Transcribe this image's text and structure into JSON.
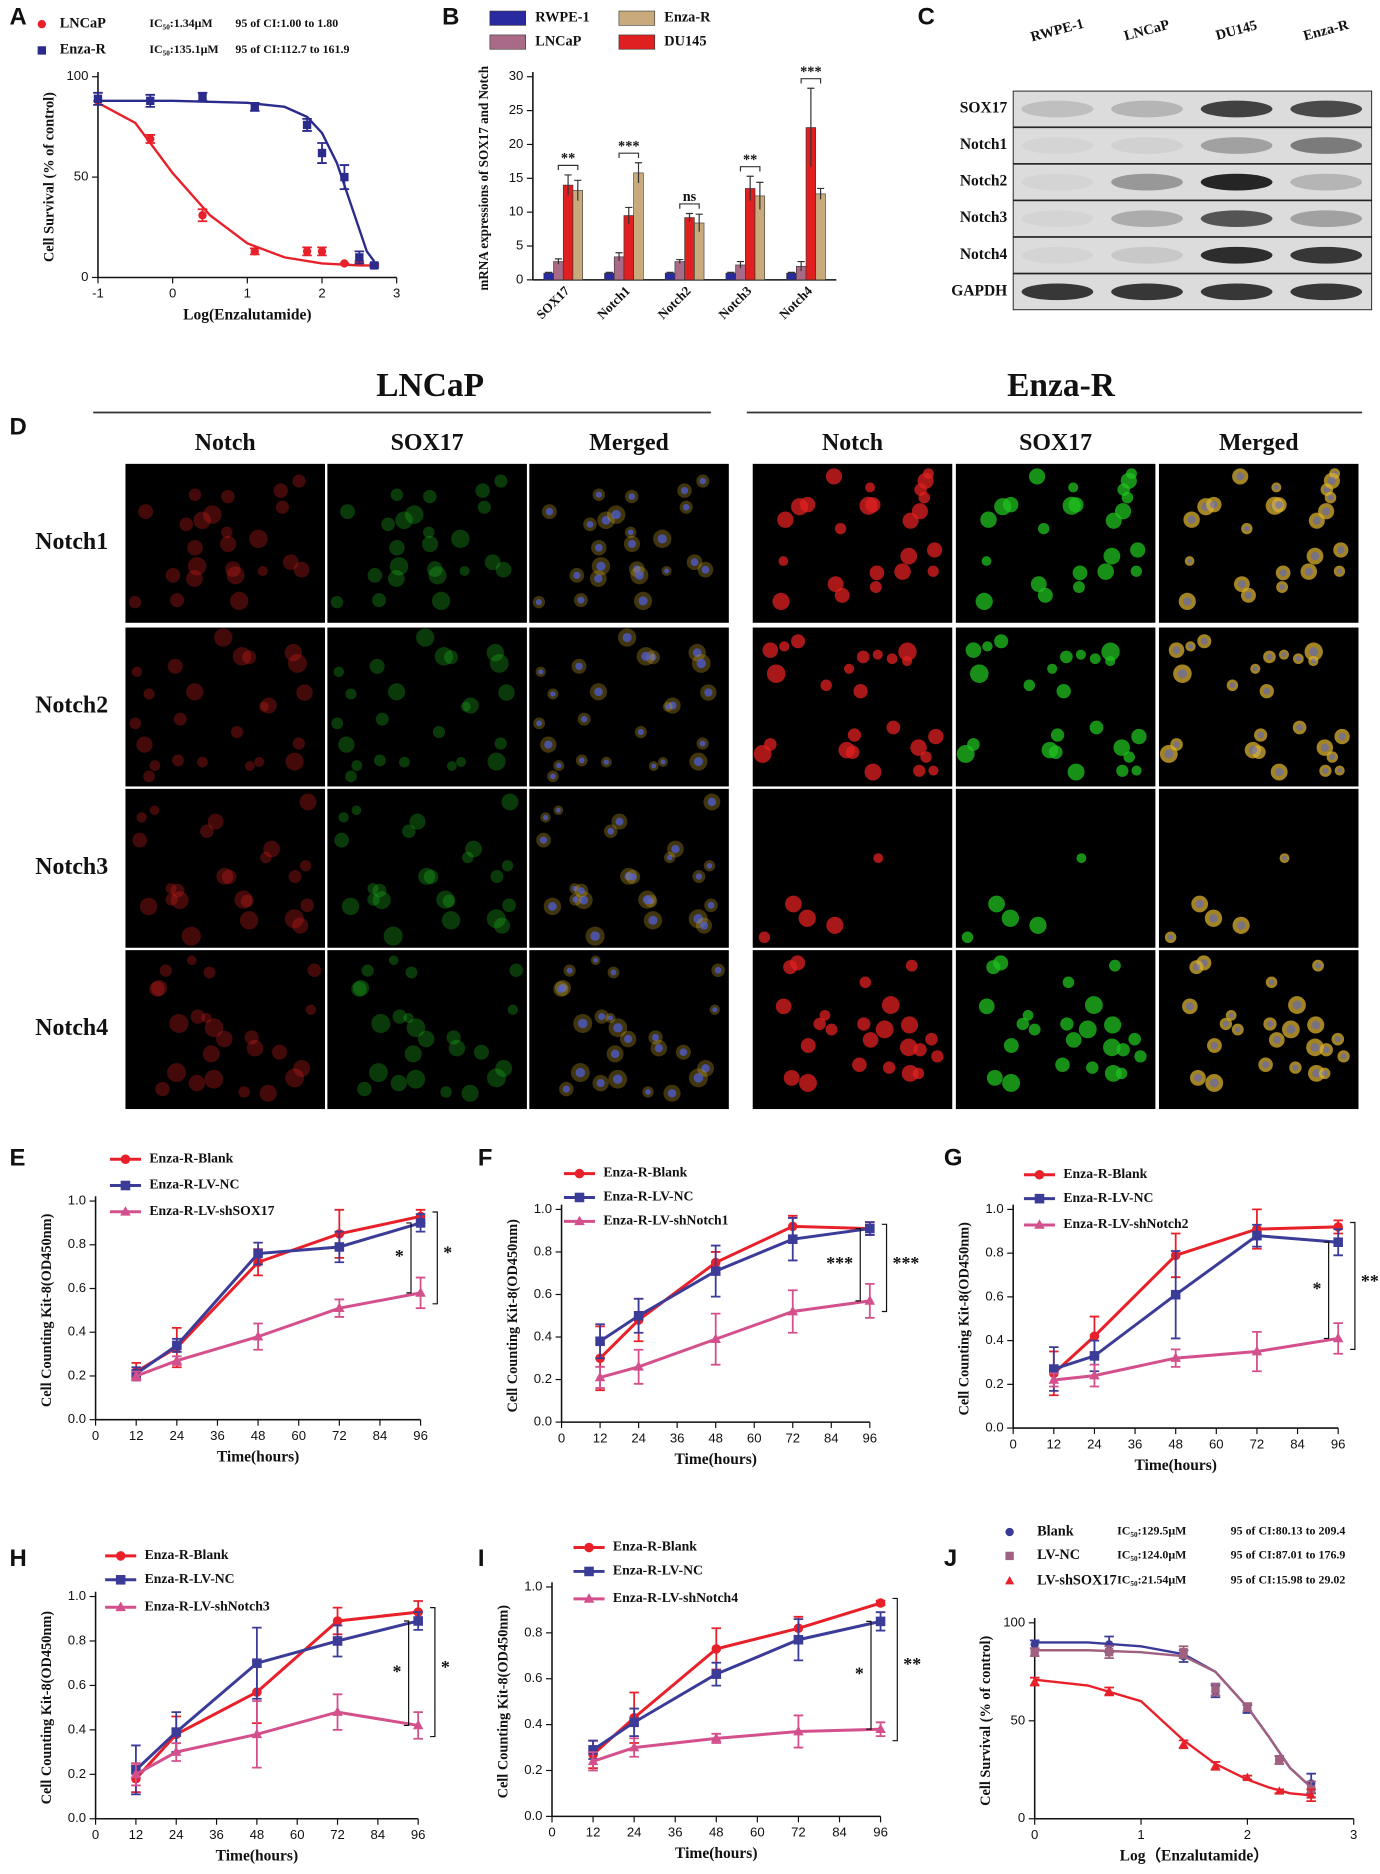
{
  "chart_data": [
    {
      "panel": "A",
      "type": "scatter",
      "x": [
        -1,
        -0.3,
        0.4,
        1.1,
        1.8,
        2,
        2.3,
        2.5,
        2.7
      ],
      "xlim": [
        -1,
        3
      ],
      "xticks": [
        -1,
        0,
        1,
        2,
        3
      ],
      "ylim": [
        0,
        100
      ],
      "yticks": [
        0,
        50,
        100
      ],
      "xlabel": "Log(Enzalutamide)",
      "ylabel": "Cell Survival (% of control)",
      "series": [
        {
          "name": "LNCaP",
          "ic50": "IC₅₀:1.34μM",
          "ci": "95 of CI:1.00 to 1.80",
          "color": "#e8202a",
          "marker": "circle",
          "values": [
            88,
            69,
            31,
            13,
            13,
            13,
            7,
            8,
            6
          ],
          "errors": [
            0,
            2,
            3,
            1.5,
            2,
            2,
            0,
            0,
            0
          ],
          "fit": {
            "x": [
              -1,
              -0.5,
              0,
              0.5,
              1,
              1.5,
              2,
              2.5,
              2.7
            ],
            "y": [
              87,
              77,
              52,
              31,
              17,
              10,
              7,
              6,
              6
            ]
          }
        },
        {
          "name": "Enza-R",
          "ic50": "IC₅₀:135.1μM",
          "ci": "95 of CI:112.7 to 161.9",
          "color": "#2b2b8c",
          "marker": "square",
          "values": [
            89,
            88,
            90,
            85,
            76,
            62,
            50,
            10,
            6
          ],
          "errors": [
            3,
            3,
            2,
            2,
            3,
            5,
            6,
            3,
            1
          ],
          "fit": {
            "x": [
              -1,
              0,
              1,
              1.5,
              1.8,
              2,
              2.2,
              2.4,
              2.6,
              2.7
            ],
            "y": [
              88,
              88,
              87,
              85,
              80,
              72,
              57,
              35,
              13,
              8
            ]
          }
        }
      ]
    },
    {
      "panel": "B",
      "type": "bar",
      "categories": [
        "SOX17",
        "Notch1",
        "Notch2",
        "Notch3",
        "Notch4"
      ],
      "ylim": [
        0,
        30
      ],
      "yticks": [
        0,
        5,
        10,
        15,
        20,
        25,
        30
      ],
      "ylabel": "mRNA expressions of SOX17 and Notch",
      "series": [
        {
          "name": "RWPE-1",
          "color": "#2a2aa0",
          "values": [
            1,
            1,
            1,
            1,
            1
          ],
          "errors": [
            0.1,
            0.1,
            0.1,
            0.1,
            0.1
          ]
        },
        {
          "name": "LNCaP",
          "color": "#a86a86",
          "values": [
            2.7,
            3.4,
            2.7,
            2.2,
            2
          ],
          "errors": [
            0.4,
            0.6,
            0.3,
            0.5,
            0.7
          ]
        },
        {
          "name": "DU145",
          "color": "#e02020",
          "values": [
            14,
            9.5,
            9.2,
            13.5,
            22.5
          ],
          "errors": [
            1.5,
            1.2,
            0.6,
            1.8,
            5.8
          ]
        },
        {
          "name": "Enza-R",
          "color": "#c8aa7c",
          "values": [
            13.2,
            15.8,
            8.4,
            12.4,
            12.7
          ],
          "errors": [
            1.5,
            1.5,
            1.3,
            2,
            0.8
          ]
        }
      ],
      "significance": [
        "**",
        "***",
        "ns",
        "**",
        "***"
      ]
    },
    {
      "panel": "E",
      "type": "line",
      "x": [
        12,
        24,
        48,
        72,
        96
      ],
      "xlim": [
        0,
        96
      ],
      "xticks": [
        0,
        12,
        24,
        36,
        48,
        60,
        72,
        84,
        96
      ],
      "ylim": [
        0,
        1
      ],
      "yticks": [
        {
          "value": 0,
          "label": "0.0"
        },
        0.2,
        0.4,
        0.6,
        0.8,
        {
          "value": 1,
          "label": "1.0"
        }
      ],
      "xlabel": "Time(hours)",
      "ylabel": "Cell Counting Kit-8(OD450nm)",
      "series": [
        {
          "name": "Enza-R-Blank",
          "color": "#e8202a",
          "marker": "circle",
          "values": [
            0.22,
            0.33,
            0.72,
            0.85,
            0.93
          ],
          "errors": [
            0.04,
            0.09,
            0.06,
            0.11,
            0.03
          ]
        },
        {
          "name": "Enza-R-LV-NC",
          "color": "#3b3b98",
          "marker": "square",
          "values": [
            0.21,
            0.34,
            0.76,
            0.79,
            0.9
          ],
          "errors": [
            0.03,
            0.03,
            0.05,
            0.07,
            0.04
          ]
        },
        {
          "name": "Enza-R-LV-shSOX17",
          "color": "#d4508c",
          "marker": "triangle",
          "values": [
            0.2,
            0.27,
            0.38,
            0.51,
            0.58
          ],
          "errors": [
            0.02,
            0.02,
            0.06,
            0.04,
            0.07
          ]
        }
      ],
      "significance": [
        "*",
        "*"
      ]
    },
    {
      "panel": "F",
      "type": "line",
      "x": [
        12,
        24,
        48,
        72,
        96
      ],
      "xlim": [
        0,
        96
      ],
      "xticks": [
        0,
        12,
        24,
        36,
        48,
        60,
        72,
        84,
        96
      ],
      "ylim": [
        0,
        1
      ],
      "yticks": [
        {
          "value": 0,
          "label": "0.0"
        },
        0.2,
        0.4,
        0.6,
        0.8,
        {
          "value": 1,
          "label": "1.0"
        }
      ],
      "xlabel": "Time(hours)",
      "ylabel": "Cell Counting Kit-8(OD450nm)",
      "series": [
        {
          "name": "Enza-R-Blank",
          "color": "#e8202a",
          "marker": "circle",
          "values": [
            0.3,
            0.48,
            0.75,
            0.92,
            0.91
          ],
          "errors": [
            0.15,
            0.1,
            0.05,
            0.05,
            0.03
          ]
        },
        {
          "name": "Enza-R-LV-NC",
          "color": "#3b3b98",
          "marker": "square",
          "values": [
            0.38,
            0.5,
            0.71,
            0.86,
            0.91
          ],
          "errors": [
            0.08,
            0.08,
            0.12,
            0.1,
            0.03
          ]
        },
        {
          "name": "Enza-R-LV-shNotch1",
          "color": "#d4508c",
          "marker": "triangle",
          "values": [
            0.21,
            0.26,
            0.39,
            0.52,
            0.57
          ],
          "errors": [
            0.05,
            0.08,
            0.12,
            0.1,
            0.08
          ]
        }
      ],
      "significance": [
        "***",
        "***"
      ]
    },
    {
      "panel": "G",
      "type": "line",
      "x": [
        12,
        24,
        48,
        72,
        96
      ],
      "xlim": [
        0,
        96
      ],
      "xticks": [
        0,
        12,
        24,
        36,
        48,
        60,
        72,
        84,
        96
      ],
      "ylim": [
        0,
        1
      ],
      "yticks": [
        {
          "value": 0,
          "label": "0.0"
        },
        0.2,
        0.4,
        0.6,
        0.8,
        {
          "value": 1,
          "label": "1.0"
        }
      ],
      "xlabel": "Time(hours)",
      "ylabel": "Cell Counting Kit-8(OD450nm)",
      "series": [
        {
          "name": "Enza-R-Blank",
          "color": "#e8202a",
          "marker": "circle",
          "values": [
            0.25,
            0.42,
            0.79,
            0.91,
            0.92
          ],
          "errors": [
            0.1,
            0.09,
            0.1,
            0.09,
            0.03
          ]
        },
        {
          "name": "Enza-R-LV-NC",
          "color": "#3b3b98",
          "marker": "square",
          "values": [
            0.27,
            0.33,
            0.61,
            0.88,
            0.85
          ],
          "errors": [
            0.1,
            0.07,
            0.2,
            0.05,
            0.06
          ]
        },
        {
          "name": "Enza-R-LV-shNotch2",
          "color": "#d4508c",
          "marker": "triangle",
          "values": [
            0.22,
            0.24,
            0.32,
            0.35,
            0.41
          ],
          "errors": [
            0.03,
            0.05,
            0.04,
            0.09,
            0.07
          ]
        }
      ],
      "significance": [
        "*",
        "**"
      ]
    },
    {
      "panel": "H",
      "type": "line",
      "x": [
        12,
        24,
        48,
        72,
        96
      ],
      "xlim": [
        0,
        96
      ],
      "xticks": [
        0,
        12,
        24,
        36,
        48,
        60,
        72,
        84,
        96
      ],
      "ylim": [
        0,
        1
      ],
      "yticks": [
        {
          "value": 0,
          "label": "0.0"
        },
        0.2,
        0.4,
        0.6,
        0.8,
        {
          "value": 1,
          "label": "1.0"
        }
      ],
      "xlabel": "Time(hours)",
      "ylabel": "Cell Counting Kit-8(OD450nm)",
      "series": [
        {
          "name": "Enza-R-Blank",
          "color": "#e8202a",
          "marker": "circle",
          "values": [
            0.18,
            0.38,
            0.57,
            0.89,
            0.93
          ],
          "errors": [
            0.06,
            0.08,
            0.14,
            0.06,
            0.05
          ]
        },
        {
          "name": "Enza-R-LV-NC",
          "color": "#3b3b98",
          "marker": "square",
          "values": [
            0.22,
            0.39,
            0.7,
            0.8,
            0.89
          ],
          "errors": [
            0.11,
            0.09,
            0.16,
            0.07,
            0.04
          ]
        },
        {
          "name": "Enza-R-LV-shNotch3",
          "color": "#d4508c",
          "marker": "triangle",
          "values": [
            0.2,
            0.3,
            0.38,
            0.48,
            0.42
          ],
          "errors": [
            0.05,
            0.04,
            0.15,
            0.08,
            0.06
          ]
        }
      ],
      "significance": [
        "*",
        "*"
      ]
    },
    {
      "panel": "I",
      "type": "line",
      "x": [
        12,
        24,
        48,
        72,
        96
      ],
      "xlim": [
        0,
        96
      ],
      "xticks": [
        0,
        12,
        24,
        36,
        48,
        60,
        72,
        84,
        96
      ],
      "ylim": [
        0,
        1
      ],
      "yticks": [
        {
          "value": 0,
          "label": "0.0"
        },
        0.2,
        0.4,
        0.6,
        0.8,
        {
          "value": 1,
          "label": "1.0"
        }
      ],
      "xlabel": "Time(hours)",
      "ylabel": "Cell Counting Kit-8(OD450nm)",
      "series": [
        {
          "name": "Enza-R-Blank",
          "color": "#e8202a",
          "marker": "circle",
          "values": [
            0.27,
            0.43,
            0.73,
            0.82,
            0.93
          ],
          "errors": [
            0.06,
            0.11,
            0.09,
            0.05,
            0.01
          ]
        },
        {
          "name": "Enza-R-LV-NC",
          "color": "#3b3b98",
          "marker": "square",
          "values": [
            0.29,
            0.41,
            0.62,
            0.77,
            0.85
          ],
          "errors": [
            0.04,
            0.06,
            0.05,
            0.09,
            0.04
          ]
        },
        {
          "name": "Enza-R-LV-shNotch4",
          "color": "#d4508c",
          "marker": "triangle",
          "values": [
            0.24,
            0.3,
            0.34,
            0.37,
            0.38
          ],
          "errors": [
            0.04,
            0.04,
            0.02,
            0.07,
            0.03
          ]
        }
      ],
      "significance": [
        "*",
        "**"
      ]
    },
    {
      "panel": "J",
      "type": "scatter",
      "x": [
        0,
        0.7,
        1.4,
        1.7,
        2,
        2.3,
        2.6
      ],
      "xlim": [
        0,
        3
      ],
      "xticks": [
        0,
        1,
        2,
        3
      ],
      "ylim": [
        0,
        100
      ],
      "yticks": [
        0,
        50,
        100
      ],
      "xlabel": "Log（Enzalutamide）",
      "ylabel": "Cell Survival (% of control)",
      "series": [
        {
          "name": "Blank",
          "ic50": "IC₅₀:129.5μM",
          "ci": "95 of CI:80.13 to 209.4",
          "color": "#3b3b98",
          "marker": "circle",
          "values": [
            89,
            89,
            83,
            65,
            56,
            30,
            18
          ],
          "errors": [
            2,
            4,
            3,
            3,
            2,
            2,
            5
          ],
          "fit": {
            "x": [
              0,
              0.5,
              1,
              1.4,
              1.7,
              2,
              2.2,
              2.4,
              2.6
            ],
            "y": [
              90,
              90,
              88,
              84,
              75,
              57,
              42,
              26,
              16
            ]
          }
        },
        {
          "name": "LV-NC",
          "ic50": "IC₅₀:124.0μM",
          "ci": "95 of CI:87.01 to 176.9",
          "color": "#a06080",
          "marker": "square",
          "values": [
            85,
            85,
            85,
            66,
            57,
            30,
            15
          ],
          "errors": [
            2,
            3,
            3,
            3,
            2,
            2,
            4
          ],
          "fit": {
            "x": [
              0,
              0.5,
              1,
              1.4,
              1.7,
              2,
              2.2,
              2.4,
              2.6
            ],
            "y": [
              86,
              86,
              85,
              83,
              75,
              57,
              42,
              26,
              16
            ]
          }
        },
        {
          "name": "LV-shSOX17",
          "ic50": "IC₅₀:21.54μM",
          "ci": "95 of CI:15.98 to 29.02",
          "color": "#e8202a",
          "marker": "triangle",
          "values": [
            70,
            65,
            38,
            27,
            21,
            14,
            12
          ],
          "errors": [
            2,
            2,
            2,
            2,
            1,
            1,
            3
          ],
          "fit": {
            "x": [
              0,
              0.5,
              1,
              1.4,
              1.7,
              2,
              2.2,
              2.4,
              2.6
            ],
            "y": [
              71,
              68,
              60,
              40,
              28,
              20,
              16,
              13,
              12
            ]
          }
        }
      ]
    }
  ],
  "blot": {
    "panel": "C",
    "lanes": [
      "RWPE-1",
      "LNCaP",
      "DU145",
      "Enza-R"
    ],
    "proteins": [
      "SOX17",
      "Notch1",
      "Notch2",
      "Notch3",
      "Notch4",
      "GAPDH"
    ]
  },
  "micrographs": {
    "panel": "D",
    "groups": [
      {
        "title": "LNCaP",
        "columns": [
          "Notch",
          "SOX17",
          "Merged"
        ]
      },
      {
        "title": "Enza-R",
        "columns": [
          "Notch",
          "SOX17",
          "Merged"
        ]
      }
    ],
    "rows": [
      "Notch1",
      "Notch2",
      "Notch3",
      "Notch4"
    ]
  }
}
